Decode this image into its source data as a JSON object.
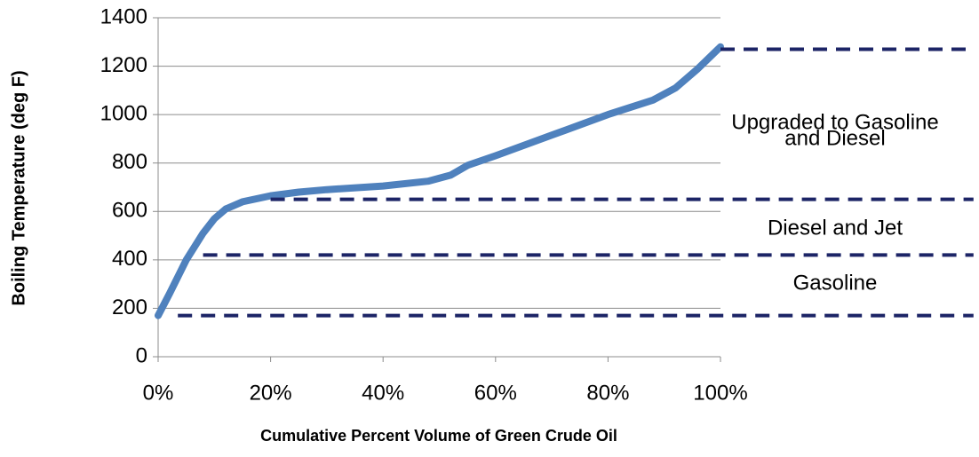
{
  "chart_data": {
    "type": "line",
    "x_label": "Cumulative Percent Volume of Green Crude Oil",
    "y_label": "Boiling Temperature (deg F)",
    "xlim": [
      0,
      100
    ],
    "xticks": [
      {
        "value": 0,
        "label": "0%"
      },
      {
        "value": 20,
        "label": "20%"
      },
      {
        "value": 40,
        "label": "40%"
      },
      {
        "value": 60,
        "label": "60%"
      },
      {
        "value": 80,
        "label": "80%"
      },
      {
        "value": 100,
        "label": "100%"
      }
    ],
    "ylim": [
      0,
      1400
    ],
    "yticks": [
      0,
      200,
      400,
      600,
      800,
      1000,
      1200,
      1400
    ],
    "grid": true,
    "series": [
      {
        "color": "#4f81bd",
        "dashed": false,
        "x": [
          0,
          2,
          5,
          8,
          10,
          12,
          15,
          20,
          25,
          30,
          40,
          48,
          52,
          55,
          60,
          70,
          80,
          88,
          92,
          96,
          100
        ],
        "values": [
          170,
          260,
          400,
          510,
          570,
          610,
          640,
          665,
          680,
          690,
          705,
          725,
          750,
          790,
          830,
          915,
          1000,
          1060,
          1110,
          1190,
          1280
        ]
      },
      {
        "color": "#1c2466",
        "dashed": true,
        "x": [
          100,
          145
        ],
        "values": [
          1270,
          1270
        ]
      },
      {
        "color": "#1c2466",
        "dashed": true,
        "x": [
          20,
          145
        ],
        "values": [
          650,
          650
        ]
      },
      {
        "color": "#1c2466",
        "dashed": true,
        "x": [
          8,
          145
        ],
        "values": [
          420,
          420
        ]
      },
      {
        "color": "#1c2466",
        "dashed": true,
        "x": [
          3.5,
          145
        ],
        "values": [
          170,
          170
        ]
      }
    ],
    "annotations": [
      "Upgraded to Gasoline",
      "and Diesel",
      "Diesel and Jet",
      "Gasoline"
    ]
  }
}
